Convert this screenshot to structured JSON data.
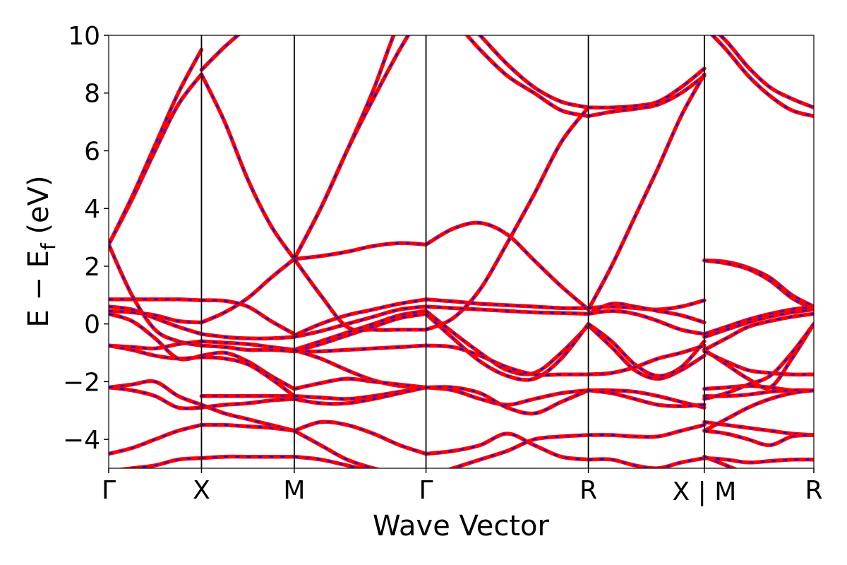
{
  "chart_data": {
    "type": "line",
    "title": "",
    "xlabel": "Wave Vector",
    "ylabel_prefix": "E − E",
    "ylabel_sub": "f",
    "ylabel_suffix": " (eV)",
    "ylim": [
      -5,
      10
    ],
    "yticks": [
      -4,
      -2,
      0,
      2,
      4,
      6,
      8,
      10
    ],
    "ytick_labels": [
      "−4",
      "−2",
      "0",
      "2",
      "4",
      "6",
      "8",
      "10"
    ],
    "xlim": [
      0,
      7.6
    ],
    "kpoints": [
      {
        "x": 0.0,
        "label": "Γ"
      },
      {
        "x": 1.0,
        "label": "X"
      },
      {
        "x": 2.0,
        "label": "M"
      },
      {
        "x": 3.42,
        "label": "Γ"
      },
      {
        "x": 5.17,
        "label": "R"
      },
      {
        "x": 6.42,
        "label": "X | M"
      },
      {
        "x": 7.6,
        "label": "R"
      }
    ],
    "series_styles": [
      {
        "color": "#ff0000",
        "style": "solid"
      },
      {
        "color": "#0000ff",
        "style": "dashed"
      }
    ],
    "segments": [
      {
        "x0": 0.0,
        "x1": 1.0,
        "bands": [
          [
            2.75,
            4.3,
            6.0,
            7.6,
            8.65
          ],
          [
            2.75,
            4.4,
            6.2,
            8.0,
            9.5
          ],
          [
            2.75,
            1.0,
            -0.2,
            -0.6,
            -0.75
          ],
          [
            0.85,
            0.85,
            0.85,
            0.85,
            0.82
          ],
          [
            0.6,
            0.5,
            0.2,
            -0.1,
            -0.35
          ],
          [
            0.45,
            0.4,
            0.3,
            0.1,
            0.05
          ],
          [
            0.35,
            0.1,
            -0.5,
            -1.2,
            -1.1
          ],
          [
            -0.75,
            -0.8,
            -0.85,
            -0.7,
            -0.6
          ],
          [
            -0.75,
            -0.9,
            -1.1,
            -1.2,
            -1.15
          ],
          [
            -2.2,
            -2.3,
            -2.5,
            -2.9,
            -2.9
          ],
          [
            -2.2,
            -2.1,
            -2.0,
            -2.5,
            -2.8
          ],
          [
            -4.5,
            -4.3,
            -4.0,
            -3.7,
            -3.5
          ],
          [
            -5.1,
            -5.0,
            -4.9,
            -4.7,
            -4.65
          ]
        ]
      },
      {
        "x0": 1.0,
        "x1": 2.0,
        "bands": [
          [
            8.65,
            7.0,
            5.0,
            3.4,
            2.25
          ],
          [
            8.8,
            9.6,
            10.3,
            11.0,
            11.5
          ],
          [
            0.05,
            0.4,
            0.9,
            1.6,
            2.25
          ],
          [
            0.82,
            0.8,
            0.6,
            0.1,
            -0.35
          ],
          [
            -0.35,
            -0.45,
            -0.5,
            -0.5,
            -0.45
          ],
          [
            -0.6,
            -0.65,
            -0.7,
            -0.8,
            -0.9
          ],
          [
            -0.75,
            -0.8,
            -0.9,
            -0.9,
            -0.95
          ],
          [
            -1.1,
            -1.0,
            -1.3,
            -1.8,
            -2.25
          ],
          [
            -1.15,
            -1.2,
            -1.4,
            -1.9,
            -2.5
          ],
          [
            -2.5,
            -2.5,
            -2.5,
            -2.5,
            -2.5
          ],
          [
            -2.9,
            -2.8,
            -2.75,
            -2.65,
            -2.6
          ],
          [
            -2.8,
            -3.1,
            -3.3,
            -3.5,
            -3.7
          ],
          [
            -3.5,
            -3.5,
            -3.55,
            -3.6,
            -3.7
          ],
          [
            -4.65,
            -4.6,
            -4.6,
            -4.6,
            -4.6
          ]
        ]
      },
      {
        "x0": 2.0,
        "x1": 3.42,
        "bands": [
          [
            2.25,
            2.35,
            2.5,
            2.7,
            2.8,
            2.75
          ],
          [
            2.25,
            4.0,
            6.0,
            8.1,
            10.5,
            12.0
          ],
          [
            2.25,
            4.0,
            6.0,
            7.8,
            9.5,
            11.0
          ],
          [
            2.25,
            1.0,
            -0.1,
            -0.2,
            -0.2,
            -0.2
          ],
          [
            -0.4,
            0.0,
            0.3,
            0.5,
            0.7,
            0.85
          ],
          [
            -0.45,
            -0.25,
            0.0,
            0.25,
            0.5,
            0.6
          ],
          [
            -0.9,
            -0.6,
            -0.3,
            0.0,
            0.3,
            0.45
          ],
          [
            -0.95,
            -0.7,
            -0.4,
            -0.1,
            0.2,
            0.35
          ],
          [
            -0.95,
            -0.95,
            -0.9,
            -0.85,
            -0.8,
            -0.75
          ],
          [
            -0.9,
            -1.2,
            -1.6,
            -1.95,
            -2.15,
            -2.2
          ],
          [
            -2.25,
            -2.05,
            -1.9,
            -2.0,
            -2.1,
            -2.2
          ],
          [
            -2.5,
            -2.55,
            -2.6,
            -2.5,
            -2.35,
            -2.2
          ],
          [
            -2.6,
            -2.75,
            -2.75,
            -2.6,
            -2.4,
            -2.2
          ],
          [
            -3.7,
            -3.4,
            -3.5,
            -3.8,
            -4.2,
            -4.5
          ],
          [
            -3.7,
            -4.2,
            -4.7,
            -5.0,
            -5.2,
            -5.3
          ],
          [
            -4.6,
            -4.7,
            -4.9,
            -5.1,
            -5.2,
            -5.3
          ]
        ]
      },
      {
        "x0": 3.42,
        "x1": 5.17,
        "bands": [
          [
            2.75,
            3.3,
            3.5,
            3.1,
            2.2,
            1.3,
            0.5
          ],
          [
            12.0,
            11.0,
            10.0,
            9.0,
            8.2,
            7.7,
            7.5
          ],
          [
            11.0,
            10.5,
            9.5,
            8.6,
            8.0,
            7.4,
            7.2
          ],
          [
            -0.2,
            0.2,
            1.2,
            2.8,
            4.5,
            6.3,
            7.5
          ],
          [
            0.85,
            0.78,
            0.7,
            0.65,
            0.6,
            0.55,
            0.55
          ],
          [
            0.6,
            0.55,
            0.5,
            0.45,
            0.4,
            0.38,
            0.35
          ],
          [
            0.45,
            -0.3,
            -1.0,
            -1.6,
            -1.7,
            -1.0,
            -0.05
          ],
          [
            0.35,
            -0.5,
            -1.3,
            -1.8,
            -1.9,
            -1.2,
            0.0
          ],
          [
            -0.75,
            -0.8,
            -1.1,
            -1.5,
            -1.75,
            -1.75,
            -1.75
          ],
          [
            -2.2,
            -2.3,
            -2.6,
            -2.8,
            -2.6,
            -2.4,
            -2.3
          ],
          [
            -2.2,
            -2.2,
            -2.4,
            -2.9,
            -3.1,
            -2.7,
            -2.3
          ],
          [
            -4.5,
            -4.4,
            -4.2,
            -3.8,
            -4.2,
            -4.6,
            -4.7
          ],
          [
            -5.3,
            -5.0,
            -4.7,
            -4.4,
            -4.0,
            -3.9,
            -3.85
          ]
        ]
      },
      {
        "x0": 5.17,
        "x1": 6.42,
        "bands": [
          [
            7.5,
            7.5,
            7.55,
            7.7,
            8.2,
            8.85
          ],
          [
            7.2,
            7.35,
            7.45,
            7.6,
            8.0,
            8.6
          ],
          [
            0.5,
            2.0,
            3.7,
            5.4,
            7.2,
            8.65
          ],
          [
            0.55,
            0.6,
            0.55,
            0.5,
            0.6,
            0.82
          ],
          [
            0.35,
            0.7,
            0.6,
            0.45,
            0.3,
            0.05
          ],
          [
            0.35,
            0.45,
            0.35,
            0.1,
            -0.2,
            -0.35
          ],
          [
            -0.05,
            -0.8,
            -1.6,
            -1.9,
            -1.6,
            -1.1
          ],
          [
            0.0,
            -0.6,
            -1.4,
            -1.8,
            -1.5,
            -0.6
          ],
          [
            -1.75,
            -1.7,
            -1.5,
            -1.2,
            -1.0,
            -0.75
          ],
          [
            -2.3,
            -2.3,
            -2.35,
            -2.5,
            -2.7,
            -2.9
          ],
          [
            -2.3,
            -2.4,
            -2.6,
            -2.8,
            -2.85,
            -2.8
          ],
          [
            -4.7,
            -4.7,
            -4.9,
            -5.0,
            -4.8,
            -4.65
          ],
          [
            -3.85,
            -3.85,
            -3.9,
            -3.9,
            -3.7,
            -3.5
          ]
        ]
      },
      {
        "x0": 6.42,
        "x1": 7.6,
        "bands": [
          [
            10.5,
            9.8,
            8.9,
            8.2,
            7.8,
            7.5
          ],
          [
            10.3,
            9.5,
            8.6,
            7.9,
            7.4,
            7.2
          ],
          [
            2.2,
            2.15,
            1.95,
            1.6,
            1.0,
            0.6
          ],
          [
            2.2,
            2.1,
            1.9,
            1.5,
            0.9,
            0.5
          ],
          [
            -0.35,
            -0.1,
            0.15,
            0.35,
            0.5,
            0.6
          ],
          [
            -0.45,
            -0.2,
            0.05,
            0.25,
            0.4,
            0.5
          ],
          [
            -0.9,
            -0.5,
            -0.1,
            0.1,
            0.25,
            0.35
          ],
          [
            -0.9,
            -1.4,
            -1.9,
            -2.2,
            -1.2,
            0.0
          ],
          [
            -0.95,
            -1.3,
            -1.6,
            -1.7,
            -1.75,
            -1.75
          ],
          [
            -2.25,
            -2.2,
            -2.15,
            -2.2,
            -2.3,
            -2.3
          ],
          [
            -2.5,
            -2.5,
            -2.45,
            -2.35,
            -2.3,
            -2.3
          ],
          [
            -2.6,
            -2.4,
            -2.1,
            -1.8,
            -1.0,
            0.0
          ],
          [
            -3.7,
            -3.3,
            -2.9,
            -2.6,
            -2.4,
            -2.3
          ],
          [
            -3.4,
            -3.5,
            -3.6,
            -3.7,
            -3.8,
            -3.85
          ],
          [
            -3.7,
            -3.8,
            -4.0,
            -4.2,
            -3.9,
            -3.85
          ],
          [
            -4.65,
            -4.7,
            -4.8,
            -4.75,
            -4.7,
            -4.7
          ],
          [
            -4.6,
            -4.9,
            -5.2,
            -5.3,
            -5.3,
            -5.3
          ]
        ]
      }
    ]
  }
}
